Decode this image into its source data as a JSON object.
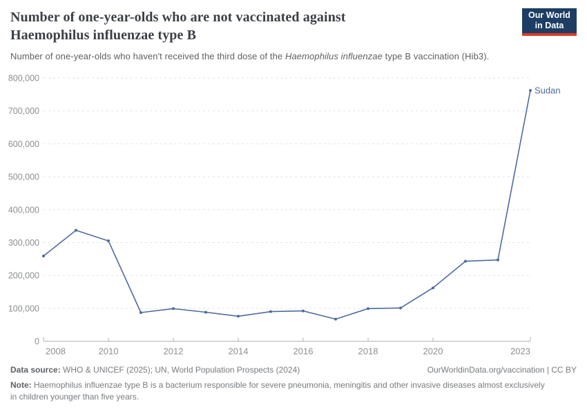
{
  "header": {
    "subtitle_prefix": "Number of one-year-olds who haven't received the third dose of the ",
    "subtitle_italic": "Haemophilus influenzae",
    "subtitle_suffix": " type B vaccination (Hib3).",
    "logo": {
      "line1": "Our World",
      "line2": "in Data"
    }
  },
  "colors": {
    "line": "#4c6a9f",
    "grid": "#e2e2e2",
    "axis": "#b3b3b3",
    "tick_text": "#8b8e91",
    "logo_bg": "#1d3d63",
    "logo_accent": "#dc3a2b"
  },
  "chart_data": {
    "type": "line",
    "title": "Number of one-year-olds who are not vaccinated against Haemophilus influenzae type B",
    "x": [
      2008,
      2009,
      2010,
      2011,
      2012,
      2013,
      2014,
      2015,
      2016,
      2017,
      2018,
      2019,
      2020,
      2021,
      2022,
      2023
    ],
    "series": [
      {
        "name": "Sudan",
        "color": "#4c6a9f",
        "values": [
          259000,
          337000,
          305000,
          87000,
          99000,
          88000,
          76000,
          90000,
          92000,
          67000,
          99000,
          101000,
          162000,
          243000,
          247000,
          762000
        ]
      }
    ],
    "x_ticks": [
      2008,
      2010,
      2012,
      2014,
      2016,
      2018,
      2020,
      2023
    ],
    "y_ticks": [
      0,
      100000,
      200000,
      300000,
      400000,
      500000,
      600000,
      700000,
      800000
    ],
    "xlim": [
      2008,
      2023
    ],
    "ylim": [
      0,
      800000
    ],
    "xlabel": "",
    "ylabel": "",
    "grid": "horizontal-dashed",
    "legend": "end-of-line-label"
  },
  "footer": {
    "datasource_label": "Data source:",
    "datasource_text": " WHO & UNICEF (2025); UN, World Population Prospects (2024)",
    "attribution": "OurWorldinData.org/vaccination | CC BY",
    "note_label": "Note:",
    "note_text": " Haemophilus influenzae type B is a bacterium responsible for severe pneumonia, meningitis and other invasive diseases almost exclusively in children younger than five years."
  }
}
